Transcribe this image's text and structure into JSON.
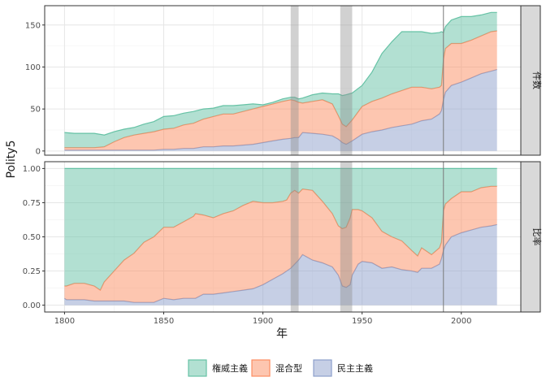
{
  "chart_data": {
    "type": "area",
    "stacked": true,
    "xlabel": "年",
    "ylabel": "Polity5",
    "x_ticks": [
      1800,
      1850,
      1900,
      1950,
      2000
    ],
    "xlim": [
      1790,
      2030
    ],
    "grid": true,
    "legend_position": "bottom",
    "legend": [
      {
        "key": "authoritarian",
        "label": "権威主義",
        "fill": "#66c2a5",
        "stroke": "#66c2a5"
      },
      {
        "key": "mixed",
        "label": "混合型",
        "fill": "#fc8d62",
        "stroke": "#fc8d62"
      },
      {
        "key": "democracy",
        "label": "民主主義",
        "fill": "#8da0cb",
        "stroke": "#8da0cb"
      }
    ],
    "shaded_periods": [
      [
        1914,
        1918
      ],
      [
        1939,
        1945
      ]
    ],
    "vlines": [
      1991
    ],
    "panels": [
      {
        "id": "count",
        "strip_label": "件数",
        "ylim": [
          -5,
          173
        ],
        "y_ticks": [
          0,
          50,
          100,
          150
        ],
        "y_tick_labels": [
          "0",
          "50",
          "100",
          "150"
        ],
        "x": [
          1800,
          1805,
          1810,
          1815,
          1820,
          1825,
          1830,
          1835,
          1840,
          1845,
          1850,
          1855,
          1860,
          1865,
          1870,
          1875,
          1880,
          1885,
          1890,
          1895,
          1900,
          1905,
          1910,
          1914,
          1916,
          1918,
          1920,
          1925,
          1930,
          1935,
          1938,
          1940,
          1942,
          1945,
          1950,
          1955,
          1960,
          1965,
          1970,
          1975,
          1980,
          1985,
          1989,
          1990,
          1991,
          1992,
          1995,
          2000,
          2005,
          2010,
          2015,
          2018
        ],
        "series": {
          "democracy": [
            1,
            1,
            1,
            1,
            1,
            1,
            1,
            1,
            1,
            1,
            2,
            2,
            3,
            3,
            5,
            5,
            6,
            6,
            7,
            8,
            10,
            12,
            14,
            15,
            16,
            16,
            22,
            21,
            20,
            18,
            14,
            10,
            8,
            12,
            20,
            23,
            25,
            28,
            30,
            32,
            36,
            38,
            44,
            48,
            61,
            70,
            78,
            82,
            87,
            92,
            95,
            97
          ],
          "mixed": [
            3,
            3,
            3,
            3,
            4,
            10,
            15,
            18,
            20,
            22,
            24,
            25,
            28,
            30,
            33,
            36,
            38,
            38,
            40,
            42,
            43,
            44,
            45,
            46,
            44,
            42,
            35,
            38,
            41,
            38,
            28,
            22,
            21,
            25,
            33,
            36,
            38,
            40,
            42,
            44,
            40,
            36,
            32,
            30,
            48,
            52,
            50,
            46,
            45,
            45,
            47,
            46
          ],
          "authoritarian": [
            18,
            17,
            17,
            17,
            14,
            12,
            10,
            9,
            11,
            12,
            15,
            15,
            14,
            14,
            12,
            10,
            10,
            10,
            8,
            6,
            2,
            2,
            3,
            3,
            4,
            4,
            6,
            8,
            8,
            12,
            26,
            34,
            38,
            32,
            25,
            35,
            53,
            62,
            70,
            66,
            66,
            66,
            65,
            64,
            32,
            26,
            28,
            32,
            28,
            25,
            23,
            22
          ]
        }
      },
      {
        "id": "ratio",
        "strip_label": "比率",
        "ylim": [
          -0.05,
          1.05
        ],
        "y_ticks": [
          0,
          0.25,
          0.5,
          0.75,
          1.0
        ],
        "y_tick_labels": [
          "0.00",
          "0.25",
          "0.50",
          "0.75",
          "1.00"
        ],
        "x": [
          1800,
          1801,
          1805,
          1810,
          1815,
          1818,
          1820,
          1825,
          1830,
          1835,
          1840,
          1845,
          1850,
          1855,
          1860,
          1865,
          1866,
          1870,
          1875,
          1880,
          1885,
          1890,
          1895,
          1900,
          1905,
          1910,
          1912,
          1914,
          1916,
          1918,
          1920,
          1925,
          1930,
          1935,
          1938,
          1940,
          1942,
          1944,
          1945,
          1948,
          1950,
          1955,
          1960,
          1965,
          1970,
          1975,
          1978,
          1980,
          1985,
          1989,
          1990,
          1991,
          1992,
          1995,
          2000,
          2005,
          2010,
          2015,
          2018
        ],
        "series": {
          "democracy": [
            0.05,
            0.04,
            0.04,
            0.04,
            0.03,
            0.03,
            0.03,
            0.03,
            0.03,
            0.02,
            0.02,
            0.02,
            0.05,
            0.04,
            0.05,
            0.05,
            0.05,
            0.08,
            0.08,
            0.09,
            0.1,
            0.11,
            0.12,
            0.15,
            0.19,
            0.23,
            0.25,
            0.27,
            0.3,
            0.33,
            0.37,
            0.33,
            0.31,
            0.28,
            0.22,
            0.14,
            0.13,
            0.15,
            0.22,
            0.3,
            0.32,
            0.31,
            0.27,
            0.28,
            0.26,
            0.25,
            0.24,
            0.27,
            0.27,
            0.3,
            0.34,
            0.4,
            0.44,
            0.5,
            0.53,
            0.55,
            0.57,
            0.58,
            0.59
          ],
          "mixed": [
            0.09,
            0.1,
            0.12,
            0.12,
            0.11,
            0.08,
            0.14,
            0.22,
            0.3,
            0.36,
            0.44,
            0.48,
            0.52,
            0.53,
            0.56,
            0.6,
            0.62,
            0.58,
            0.56,
            0.58,
            0.59,
            0.62,
            0.64,
            0.6,
            0.56,
            0.53,
            0.52,
            0.55,
            0.54,
            0.49,
            0.48,
            0.51,
            0.45,
            0.39,
            0.36,
            0.42,
            0.44,
            0.49,
            0.48,
            0.4,
            0.37,
            0.33,
            0.27,
            0.22,
            0.21,
            0.15,
            0.12,
            0.15,
            0.1,
            0.12,
            0.12,
            0.29,
            0.3,
            0.28,
            0.3,
            0.28,
            0.29,
            0.29,
            0.28
          ],
          "authoritarian": [
            0.86,
            0.86,
            0.84,
            0.84,
            0.86,
            0.89,
            0.83,
            0.75,
            0.67,
            0.62,
            0.54,
            0.5,
            0.43,
            0.43,
            0.39,
            0.35,
            0.33,
            0.34,
            0.36,
            0.33,
            0.31,
            0.27,
            0.24,
            0.25,
            0.25,
            0.24,
            0.23,
            0.18,
            0.16,
            0.18,
            0.15,
            0.16,
            0.24,
            0.33,
            0.42,
            0.44,
            0.43,
            0.36,
            0.3,
            0.3,
            0.31,
            0.36,
            0.46,
            0.5,
            0.53,
            0.6,
            0.64,
            0.58,
            0.63,
            0.58,
            0.54,
            0.31,
            0.26,
            0.22,
            0.17,
            0.17,
            0.14,
            0.13,
            0.13
          ]
        }
      }
    ]
  }
}
